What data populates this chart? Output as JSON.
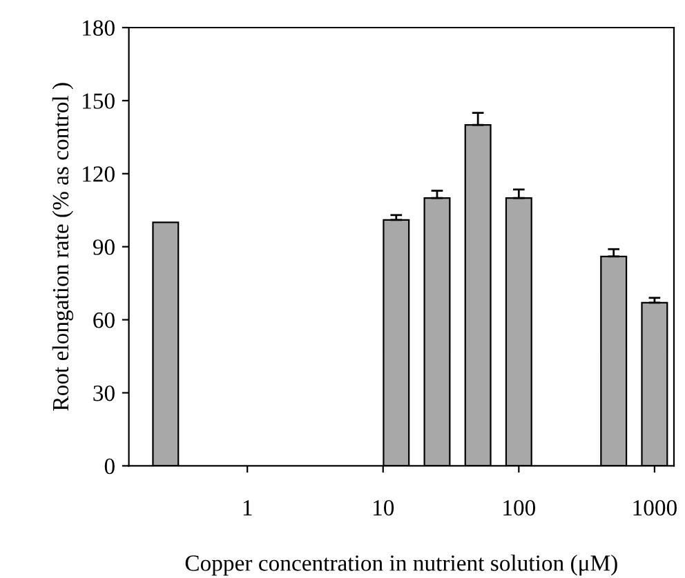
{
  "chart_data": {
    "type": "bar",
    "xlabel": "Copper concentration in nutrient solution (μM)",
    "ylabel": "Root elongation rate (% as control )",
    "x": [
      0.25,
      12.5,
      25,
      50,
      100,
      500,
      1000
    ],
    "series": [
      {
        "color": "#a8a8a8",
        "values": [
          100,
          101,
          110,
          140,
          110,
          86,
          67
        ],
        "errors": [
          null,
          2,
          3,
          5,
          3.5,
          3,
          2
        ]
      }
    ],
    "log": "x",
    "xlim": [
      0.134,
      1390
    ],
    "xticks": [
      1,
      10,
      100,
      1000
    ],
    "ylim": [
      0,
      180
    ],
    "yticks": [
      0,
      30,
      60,
      90,
      120,
      150,
      180
    ],
    "grid": false,
    "legend": false
  }
}
